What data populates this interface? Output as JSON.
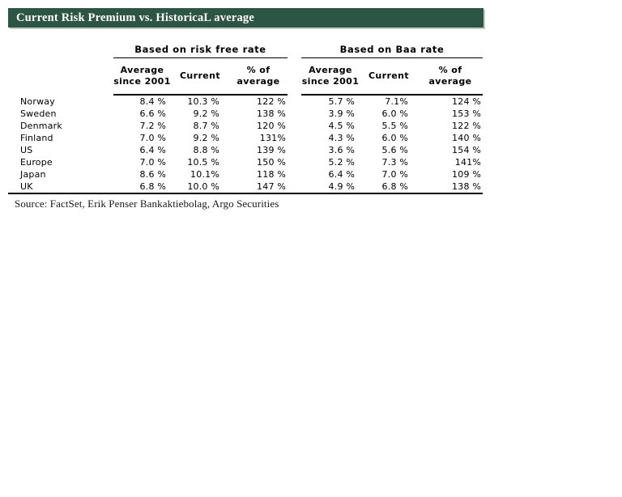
{
  "title": "Current Risk Premium vs. HistoricaL average",
  "groups": [
    {
      "label": "Based on risk free rate"
    },
    {
      "label": "Based on Baa rate"
    }
  ],
  "columns": {
    "avg": "Average since 2001",
    "current": "Current",
    "pct": "% of average"
  },
  "rows": [
    {
      "country": "Norway",
      "values": [
        "8.4 %",
        "10.3 %",
        "122 %",
        "5.7 %",
        "7.1%",
        "124 %"
      ]
    },
    {
      "country": "Sweden",
      "values": [
        "6.6 %",
        "9.2 %",
        "138 %",
        "3.9 %",
        "6.0 %",
        "153 %"
      ]
    },
    {
      "country": "Denmark",
      "values": [
        "7.2 %",
        "8.7 %",
        "120 %",
        "4.5 %",
        "5.5 %",
        "122 %"
      ]
    },
    {
      "country": "Finland",
      "values": [
        "7.0 %",
        "9.2 %",
        "131%",
        "4.3 %",
        "6.0 %",
        "140 %"
      ]
    },
    {
      "country": "US",
      "values": [
        "6.4 %",
        "8.8 %",
        "139 %",
        "3.6 %",
        "5.6 %",
        "154 %"
      ]
    },
    {
      "country": "Europe",
      "values": [
        "7.0 %",
        "10.5 %",
        "150 %",
        "5.2 %",
        "7.3 %",
        "141%"
      ]
    },
    {
      "country": "Japan",
      "values": [
        "8.6 %",
        "10.1%",
        "118 %",
        "6.4 %",
        "7.0 %",
        "109 %"
      ]
    },
    {
      "country": "UK",
      "values": [
        "6.8 %",
        "10.0 %",
        "147 %",
        "4.9 %",
        "6.8 %",
        "138 %"
      ]
    }
  ],
  "source": "Source: FactSet, Erik Penser Bankaktiebolag, Argo Securities",
  "colors": {
    "title_bg": "#2D5546",
    "title_text": "#FFFFFF",
    "rule": "#000000"
  }
}
